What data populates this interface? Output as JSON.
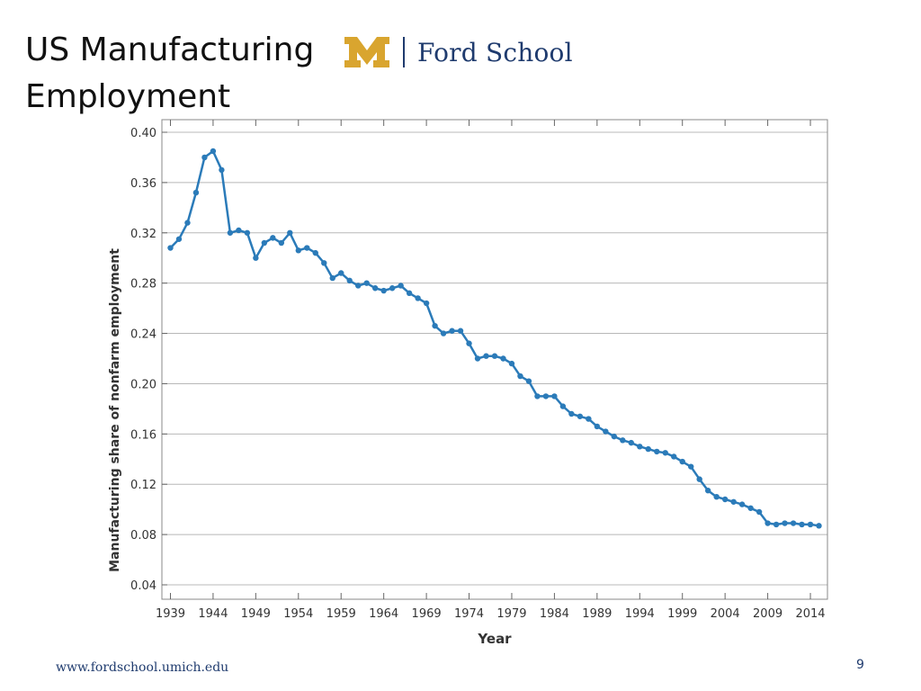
{
  "slide": {
    "title_line1": "US Manufacturing",
    "title_line2": "Employment",
    "logo_text": "Ford School",
    "footer_url": "www.fordschool.umich.edu",
    "page_number": "9"
  },
  "colors": {
    "series": "#2b7bb9",
    "logo_maize": "#d9a52f",
    "logo_navy": "#1f3b6e",
    "grid": "#b8b8b8"
  },
  "chart_data": {
    "type": "line",
    "title": "",
    "xlabel": "Year",
    "ylabel": "Manufacturing share of nonfarm employment",
    "xlim": [
      1938,
      2016
    ],
    "ylim": [
      0.04,
      0.4
    ],
    "x_ticks": [
      "1939",
      "1944",
      "1949",
      "1954",
      "1959",
      "1964",
      "1969",
      "1974",
      "1979",
      "1984",
      "1989",
      "1994",
      "1999",
      "2004",
      "2009",
      "2014"
    ],
    "y_ticks": [
      "0.40",
      "0.36",
      "0.32",
      "0.28",
      "0.24",
      "0.20",
      "0.16",
      "0.12",
      "0.08",
      "0.04"
    ],
    "grid": "horizontal",
    "series": [
      {
        "x": [
          1939,
          1940,
          1941,
          1942,
          1943,
          1944,
          1945,
          1946,
          1947,
          1948,
          1949,
          1950,
          1951,
          1952,
          1953,
          1954,
          1955,
          1956,
          1957,
          1958,
          1959,
          1960,
          1961,
          1962,
          1963,
          1964,
          1965,
          1966,
          1967,
          1968,
          1969,
          1970,
          1971,
          1972,
          1973,
          1974,
          1975,
          1976,
          1977,
          1978,
          1979,
          1980,
          1981,
          1982,
          1983,
          1984,
          1985,
          1986,
          1987,
          1988,
          1989,
          1990,
          1991,
          1992,
          1993,
          1994,
          1995,
          1996,
          1997,
          1998,
          1999,
          2000,
          2001,
          2002,
          2003,
          2004,
          2005,
          2006,
          2007,
          2008,
          2009,
          2010,
          2011,
          2012,
          2013,
          2014,
          2015
        ],
        "y": [
          0.308,
          0.315,
          0.328,
          0.352,
          0.38,
          0.385,
          0.37,
          0.32,
          0.322,
          0.32,
          0.3,
          0.312,
          0.316,
          0.312,
          0.32,
          0.306,
          0.308,
          0.304,
          0.296,
          0.284,
          0.288,
          0.282,
          0.278,
          0.28,
          0.276,
          0.274,
          0.276,
          0.278,
          0.272,
          0.268,
          0.264,
          0.246,
          0.24,
          0.242,
          0.242,
          0.232,
          0.22,
          0.222,
          0.222,
          0.22,
          0.216,
          0.206,
          0.202,
          0.19,
          0.19,
          0.19,
          0.182,
          0.176,
          0.174,
          0.172,
          0.166,
          0.162,
          0.158,
          0.155,
          0.153,
          0.15,
          0.148,
          0.146,
          0.145,
          0.142,
          0.138,
          0.134,
          0.124,
          0.115,
          0.11,
          0.108,
          0.106,
          0.104,
          0.101,
          0.098,
          0.089,
          0.088,
          0.089,
          0.089,
          0.088,
          0.088,
          0.087
        ]
      }
    ]
  }
}
